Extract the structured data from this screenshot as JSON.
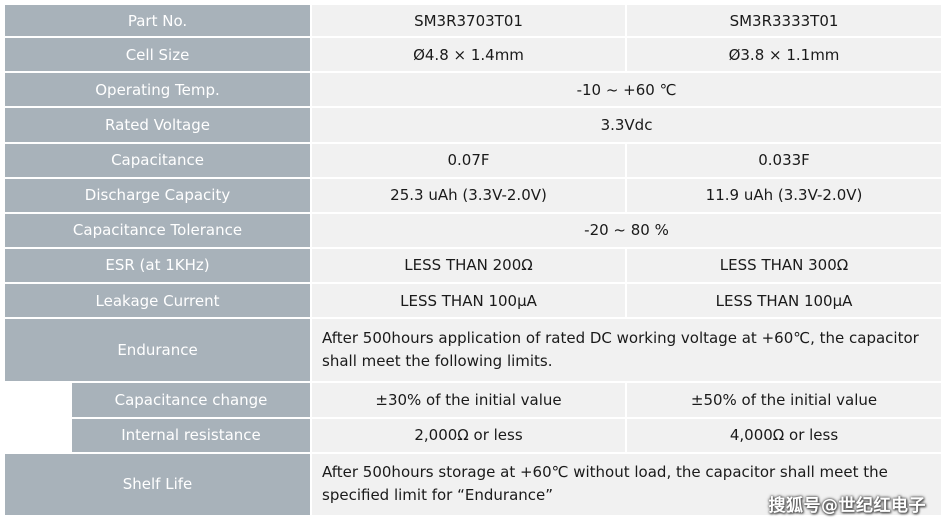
{
  "table": {
    "rows": {
      "part_no": {
        "label": "Part No.",
        "col1": "SM3R3703T01",
        "col2": "SM3R3333T01"
      },
      "cell_size": {
        "label": "Cell Size",
        "col1": "Ø4.8 × 1.4mm",
        "col2": "Ø3.8 × 1.1mm"
      },
      "operating_temp": {
        "label": "Operating Temp.",
        "value": "-10 ~ +60 ℃"
      },
      "rated_voltage": {
        "label": "Rated Voltage",
        "value": "3.3Vdc"
      },
      "capacitance": {
        "label": "Capacitance",
        "col1": "0.07F",
        "col2": "0.033F"
      },
      "discharge_capacity": {
        "label": "Discharge Capacity",
        "col1": "25.3 uAh (3.3V-2.0V)",
        "col2": "11.9 uAh (3.3V-2.0V)"
      },
      "capacitance_tolerance": {
        "label": "Capacitance Tolerance",
        "value": "-20 ~ 80 %"
      },
      "esr": {
        "label": "ESR (at 1KHz)",
        "col1": "LESS THAN 200Ω",
        "col2": "LESS THAN 300Ω"
      },
      "leakage_current": {
        "label": "Leakage Current",
        "col1": "LESS THAN 100μA",
        "col2": "LESS THAN 100μA"
      },
      "endurance": {
        "label": "Endurance",
        "value": "After 500hours application of rated DC working voltage at +60℃, the capacitor shall meet the following limits."
      },
      "capacitance_change": {
        "label": "Capacitance change",
        "col1": "±30% of the initial value",
        "col2": "±50% of the initial value"
      },
      "internal_resistance": {
        "label": "Internal resistance",
        "col1": "2,000Ω or less",
        "col2": "4,000Ω or less"
      },
      "shelf_life": {
        "label": "Shelf Life",
        "value": "After 500hours storage at +60℃ without load, the capacitor shall meet the specified limit for “Endurance”"
      }
    }
  },
  "watermark": "搜狐号@世纪红电子",
  "colors": {
    "label_bg": "#a8b2ba",
    "value_bg": "#f1f1f1",
    "label_text": "#ffffff",
    "value_text": "#1a1a1a"
  }
}
